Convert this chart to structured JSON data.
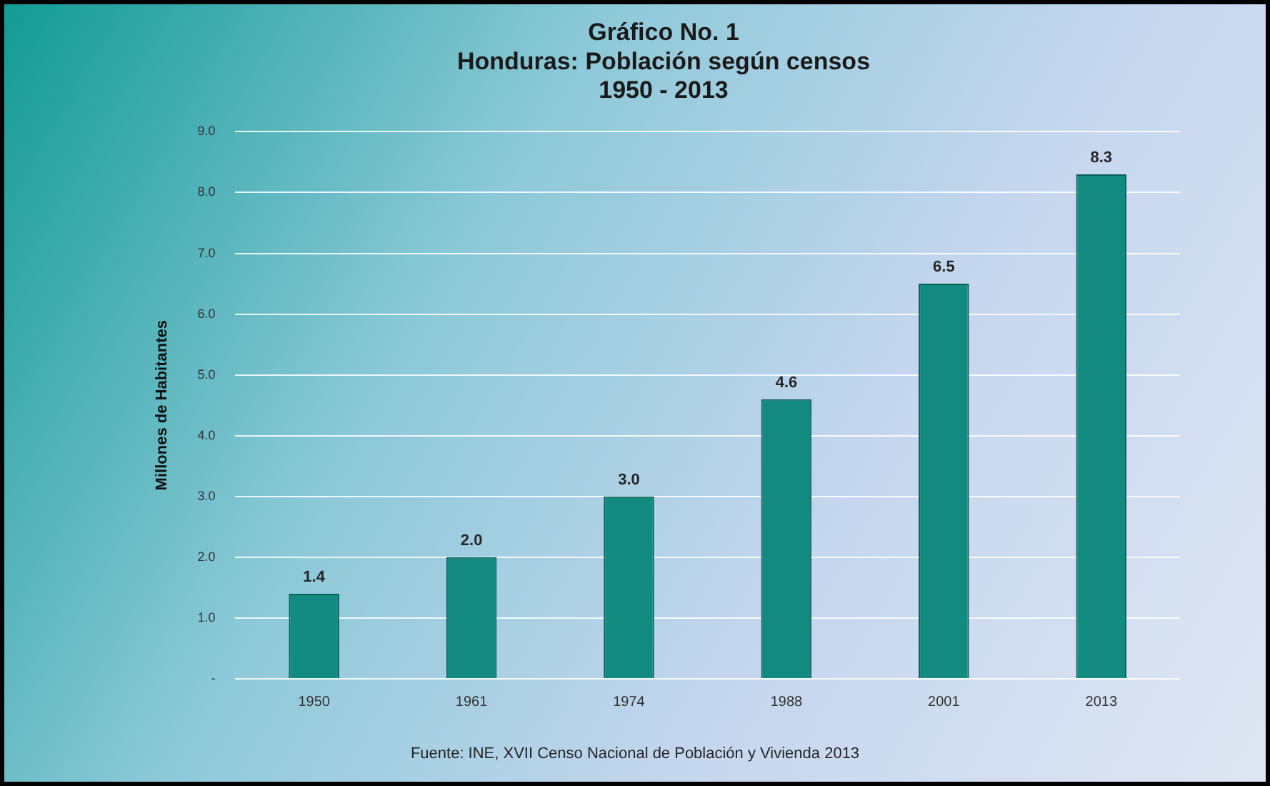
{
  "chart_data": {
    "type": "bar",
    "title": "Gráfico No. 1\nHonduras: Población según censos\n1950 - 2013",
    "ylabel": "Millones de Habitantes",
    "categories": [
      "1950",
      "1961",
      "1974",
      "1988",
      "2001",
      "2013"
    ],
    "values": [
      1.4,
      2.0,
      3.0,
      4.6,
      6.5,
      8.3
    ],
    "value_labels": [
      "1.4",
      "2.0",
      "3.0",
      "4.6",
      "6.5",
      "8.3"
    ],
    "color": "#128a80",
    "ylim": [
      0,
      9
    ],
    "yticks": [
      {
        "value": 0,
        "label": "-"
      },
      {
        "value": 1,
        "label": "1.0"
      },
      {
        "value": 2,
        "label": "2.0"
      },
      {
        "value": 3,
        "label": "3.0"
      },
      {
        "value": 4,
        "label": "4.0"
      },
      {
        "value": 5,
        "label": "5.0"
      },
      {
        "value": 6,
        "label": "6.0"
      },
      {
        "value": 7,
        "label": "7.0"
      },
      {
        "value": 8,
        "label": "8.0"
      },
      {
        "value": 9,
        "label": "9.0"
      }
    ],
    "grid": "y",
    "legend": false,
    "annotations": [
      "Fuente: INE, XVII Censo Nacional de Población y Vivienda 2013"
    ]
  }
}
